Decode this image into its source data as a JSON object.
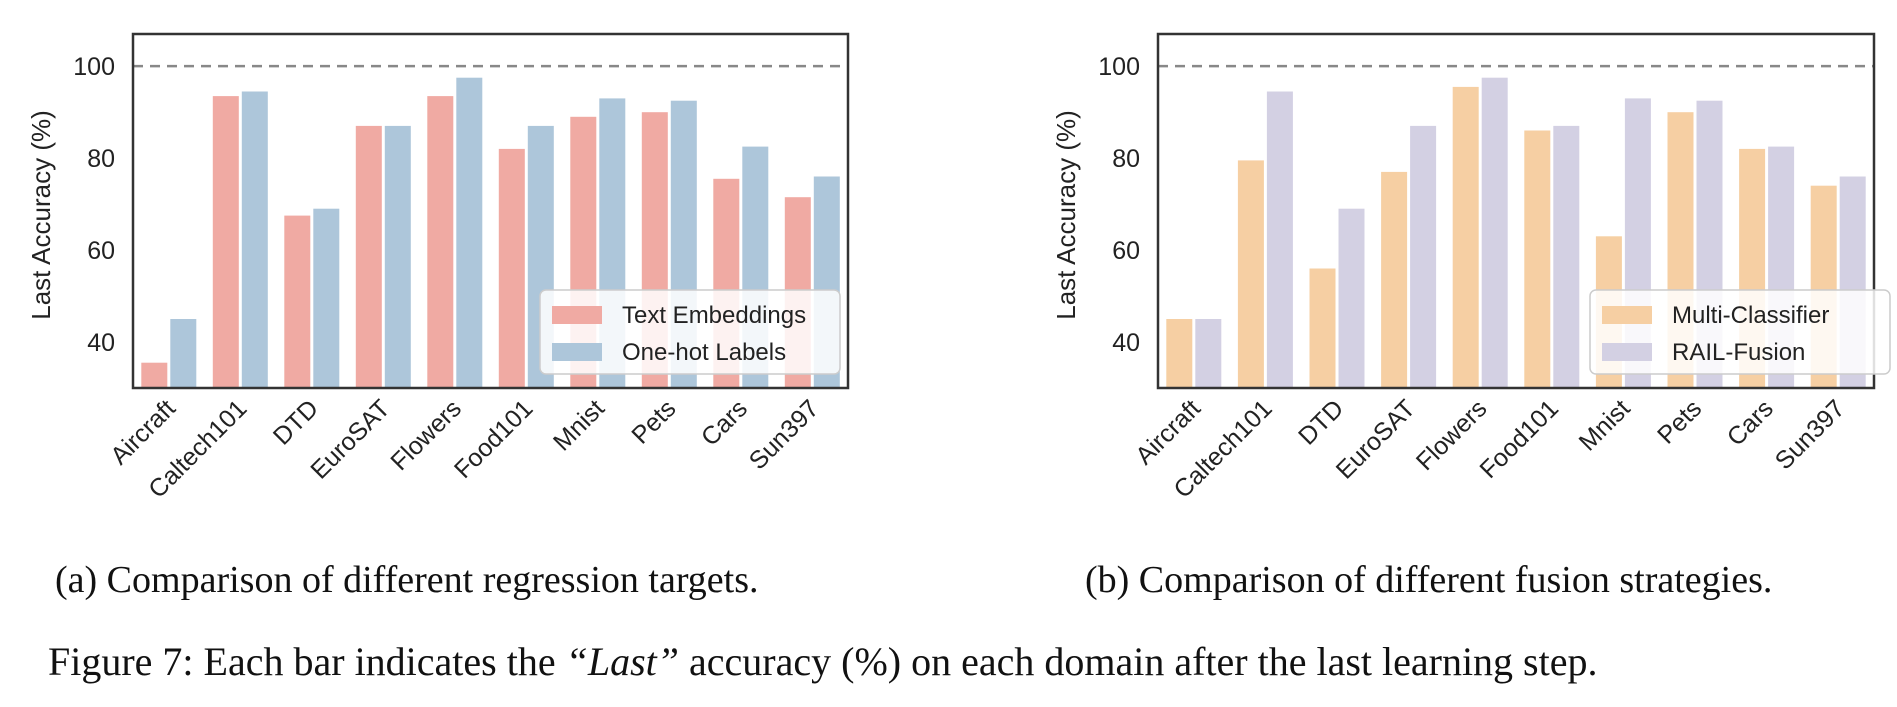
{
  "chart_data": [
    {
      "type": "bar",
      "ylabel": "Last Accuracy (%)",
      "xlabel": "",
      "ylim": [
        30,
        107
      ],
      "yticks": [
        40,
        60,
        80,
        100
      ],
      "reference_line": 100,
      "grid": false,
      "legend_position": "lower-right",
      "categories": [
        "Aircraft",
        "Caltech101",
        "DTD",
        "EuroSAT",
        "Flowers",
        "Food101",
        "Mnist",
        "Pets",
        "Cars",
        "Sun397"
      ],
      "series": [
        {
          "name": "Text Embeddings",
          "color": "#f0aaa3",
          "values": [
            35.5,
            93.5,
            67.5,
            87.0,
            93.5,
            82.0,
            89.0,
            90.0,
            75.5,
            71.5
          ]
        },
        {
          "name": "One-hot Labels",
          "color": "#adc6da",
          "values": [
            45.0,
            94.5,
            69.0,
            87.0,
            97.5,
            87.0,
            93.0,
            92.5,
            82.5,
            76.0
          ]
        }
      ],
      "subcaption": "(a) Comparison of different regression targets."
    },
    {
      "type": "bar",
      "ylabel": "Last Accuracy (%)",
      "xlabel": "",
      "ylim": [
        30,
        107
      ],
      "yticks": [
        40,
        60,
        80,
        100
      ],
      "reference_line": 100,
      "grid": false,
      "legend_position": "lower-right",
      "categories": [
        "Aircraft",
        "Caltech101",
        "DTD",
        "EuroSAT",
        "Flowers",
        "Food101",
        "Mnist",
        "Pets",
        "Cars",
        "Sun397"
      ],
      "series": [
        {
          "name": "Multi-Classifier",
          "color": "#f6cfa3",
          "values": [
            45.0,
            79.5,
            56.0,
            77.0,
            95.5,
            86.0,
            63.0,
            90.0,
            82.0,
            74.0
          ]
        },
        {
          "name": "RAIL-Fusion",
          "color": "#d3d0e3",
          "values": [
            45.0,
            94.5,
            69.0,
            87.0,
            97.5,
            87.0,
            93.0,
            92.5,
            82.5,
            76.0
          ]
        }
      ],
      "subcaption": "(b) Comparison of different fusion strategies."
    }
  ],
  "figure_caption": {
    "prefix": "Figure 7: Each bar indicates the ",
    "emphasis": "“Last”",
    "suffix": " accuracy (%) on each domain after the last learning step."
  }
}
